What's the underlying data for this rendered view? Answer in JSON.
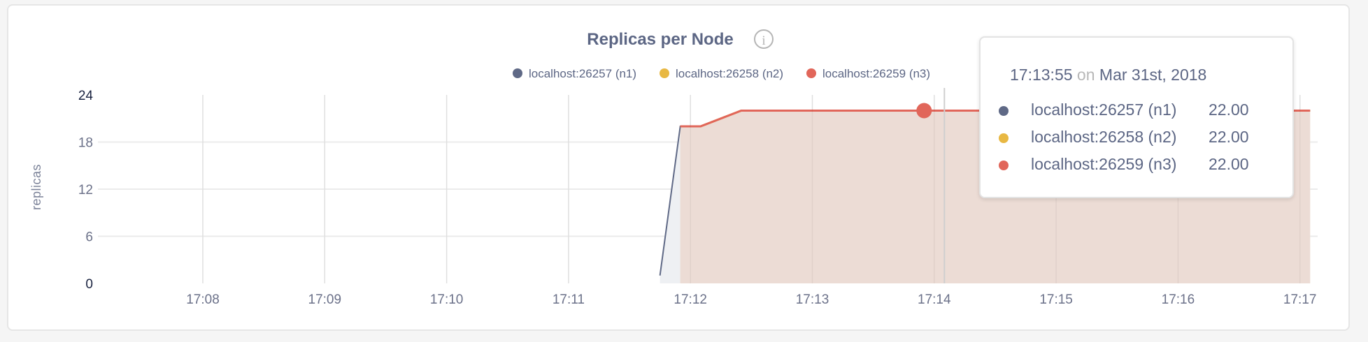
{
  "chart_data": {
    "type": "area",
    "title": "Replicas per Node",
    "ylabel": "replicas",
    "xlabel": "",
    "ylim": [
      0,
      24
    ],
    "yticks": [
      "0",
      "6",
      "12",
      "18",
      "24"
    ],
    "xlim": [
      "17:07:00",
      "17:17:10"
    ],
    "xticks": [
      "17:08",
      "17:09",
      "17:10",
      "17:11",
      "17:12",
      "17:13",
      "17:14",
      "17:15",
      "17:16",
      "17:17"
    ],
    "grid": true,
    "legend_position": "top-right",
    "series": [
      {
        "name": "localhost:26257 (n1)",
        "color": "#5f6986",
        "fill": "#eef0f3",
        "points": [
          [
            "17:11:45",
            1
          ],
          [
            "17:11:55",
            20
          ],
          [
            "17:12:05",
            20
          ],
          [
            "17:12:25",
            22
          ],
          [
            "17:17:05",
            22
          ]
        ]
      },
      {
        "name": "localhost:26258 (n2)",
        "color": "#e8b843",
        "fill": "#f5ecd6",
        "points": [
          [
            "17:11:55",
            20
          ],
          [
            "17:12:05",
            20
          ],
          [
            "17:12:25",
            22
          ],
          [
            "17:17:05",
            22
          ]
        ]
      },
      {
        "name": "localhost:26259 (n3)",
        "color": "#e1665a",
        "fill": "#ecdcd5",
        "points": [
          [
            "17:11:55",
            20
          ],
          [
            "17:12:05",
            20
          ],
          [
            "17:12:25",
            22
          ],
          [
            "17:17:05",
            22
          ]
        ]
      }
    ],
    "hover": {
      "time": "17:13:55",
      "on": "on",
      "date": "Mar 31st, 2018",
      "crosshair_time": "17:14:05",
      "rows": [
        {
          "name": "localhost:26257 (n1)",
          "value": "22.00",
          "color": "#5f6986"
        },
        {
          "name": "localhost:26258 (n2)",
          "value": "22.00",
          "color": "#e8b843"
        },
        {
          "name": "localhost:26259 (n3)",
          "value": "22.00",
          "color": "#e1665a"
        }
      ]
    }
  },
  "info_icon": "info-circle-icon"
}
